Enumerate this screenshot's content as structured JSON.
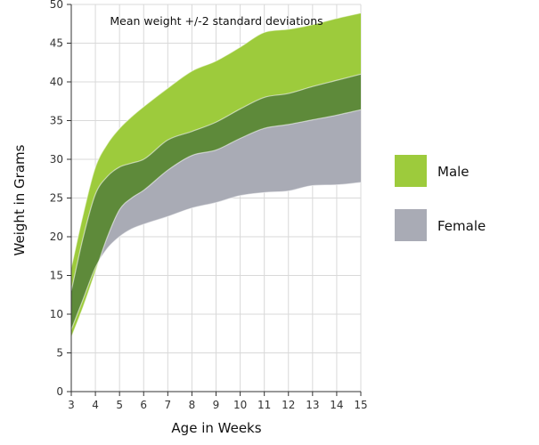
{
  "chart_data": {
    "type": "area",
    "title": "Mean weight +/-2 standard deviations",
    "xlabel": "Age in Weeks",
    "ylabel": "Weight in Grams",
    "xlim": [
      3,
      15
    ],
    "ylim": [
      0,
      50
    ],
    "x_ticks": [
      3,
      4,
      5,
      6,
      7,
      8,
      9,
      10,
      11,
      12,
      13,
      14,
      15
    ],
    "y_ticks": [
      0,
      5,
      10,
      15,
      20,
      25,
      30,
      35,
      40,
      45,
      50
    ],
    "grid": true,
    "legend_position": "right",
    "x": [
      3,
      3.5,
      4,
      4.5,
      5,
      5.5,
      6,
      7,
      8,
      9,
      10,
      11,
      12,
      13,
      14,
      15
    ],
    "series": [
      {
        "name": "Male",
        "color": "#9dcb3c",
        "upper": [
          16,
          23,
          29,
          32,
          34,
          35.5,
          36.8,
          39.2,
          41.4,
          42.7,
          44.5,
          46.4,
          46.8,
          47.4,
          48.2,
          48.9
        ],
        "lower": [
          7,
          11,
          15.5,
          20,
          23.5,
          25,
          26,
          28.6,
          30.5,
          31.2,
          32.7,
          34,
          34.5,
          35.1,
          35.7,
          36.4
        ]
      },
      {
        "name": "Female",
        "color": "#a9abb5",
        "upper": [
          13,
          20,
          25.5,
          27.8,
          29,
          29.5,
          30,
          32.5,
          33.6,
          34.8,
          36.5,
          38,
          38.5,
          39.4,
          40.2,
          41
        ],
        "lower": [
          8,
          12,
          16,
          18.5,
          20,
          21,
          21.6,
          22.6,
          23.7,
          24.4,
          25.3,
          25.7,
          25.9,
          26.6,
          26.7,
          27
        ]
      }
    ],
    "legend": [
      {
        "name": "Male",
        "color": "#9dcb3c"
      },
      {
        "name": "Female",
        "color": "#a9abb5"
      }
    ],
    "overlap_color": "#5e8a3a"
  }
}
